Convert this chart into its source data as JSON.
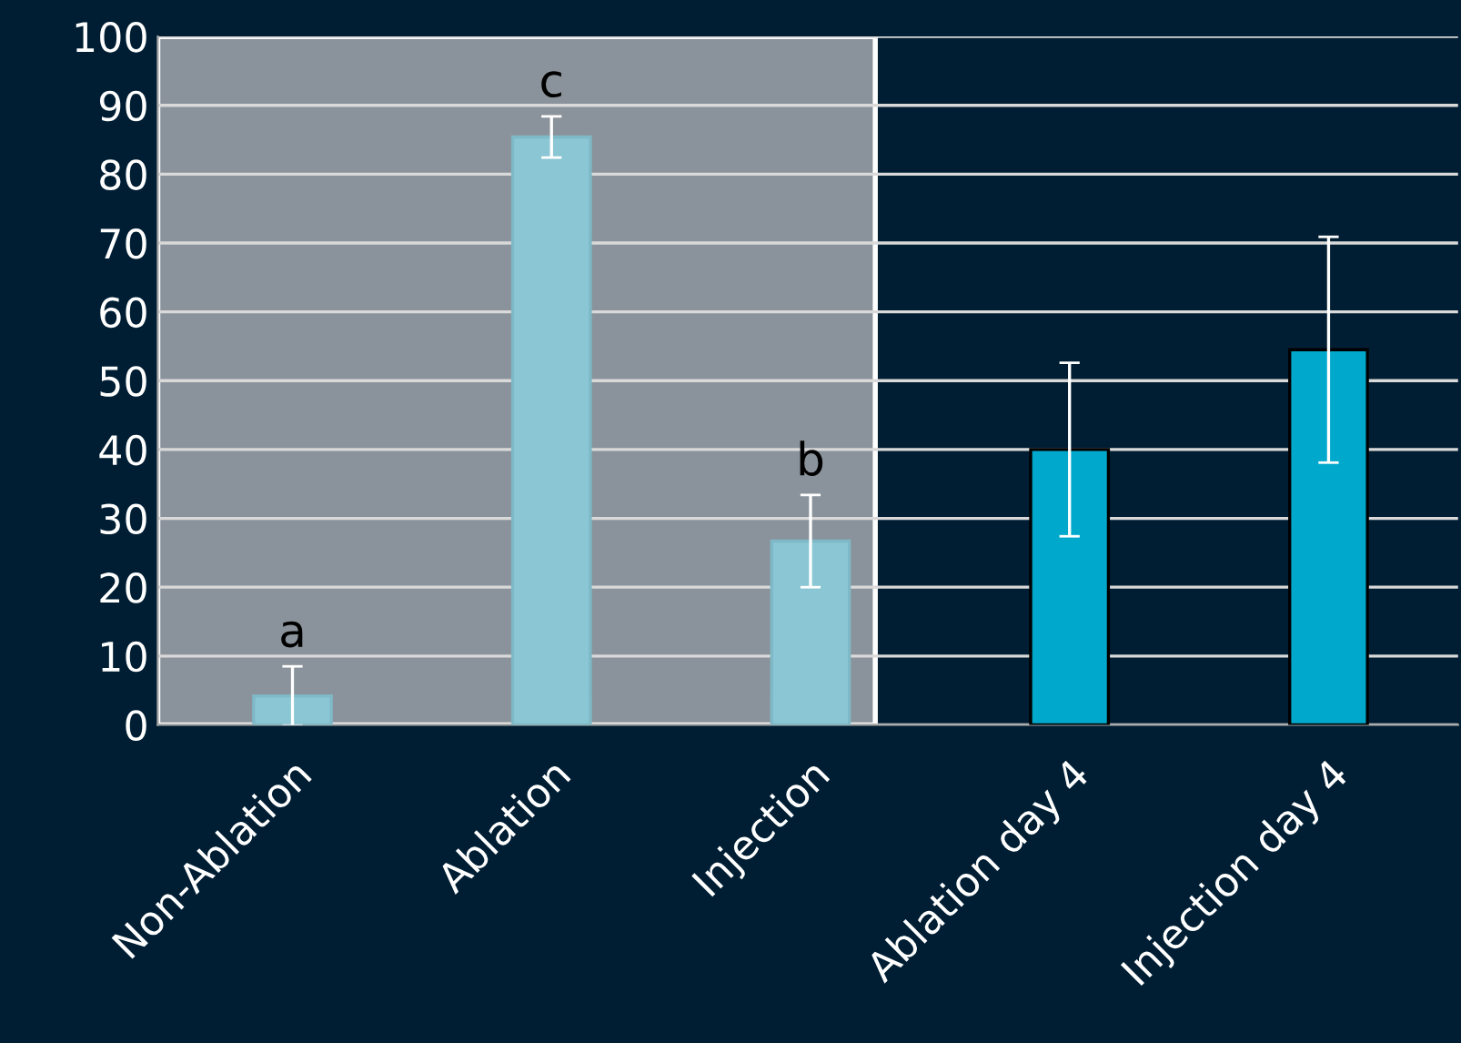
{
  "chart_data": {
    "type": "bar",
    "categories": [
      "Non-Ablation",
      "Ablation",
      "Injection",
      "Ablation day 4",
      "Injection day 4"
    ],
    "values": [
      4.2,
      85.4,
      26.7,
      40,
      54.5
    ],
    "errors": [
      4.3,
      3,
      6.7,
      12.6,
      16.4
    ],
    "colors": [
      "#8ac6d4",
      "#8ac6d4",
      "#8ac6d4",
      "#00a9cc",
      "#00a9cc"
    ],
    "ylim": [
      0,
      100
    ],
    "yticks": [
      0,
      10,
      20,
      30,
      40,
      50,
      60,
      70,
      80,
      90,
      100
    ],
    "grid": "y",
    "bands": [
      {
        "axis": "x",
        "from": "Non-Ablation",
        "to": "Injection",
        "color": "#8a939b"
      }
    ],
    "annotations": [
      {
        "text": "a",
        "x": "Non-Ablation",
        "y": 8.5
      },
      {
        "text": "c",
        "x": "Ablation",
        "y": 88.4
      },
      {
        "text": "b",
        "x": "Injection",
        "y": 33.4
      }
    ]
  }
}
